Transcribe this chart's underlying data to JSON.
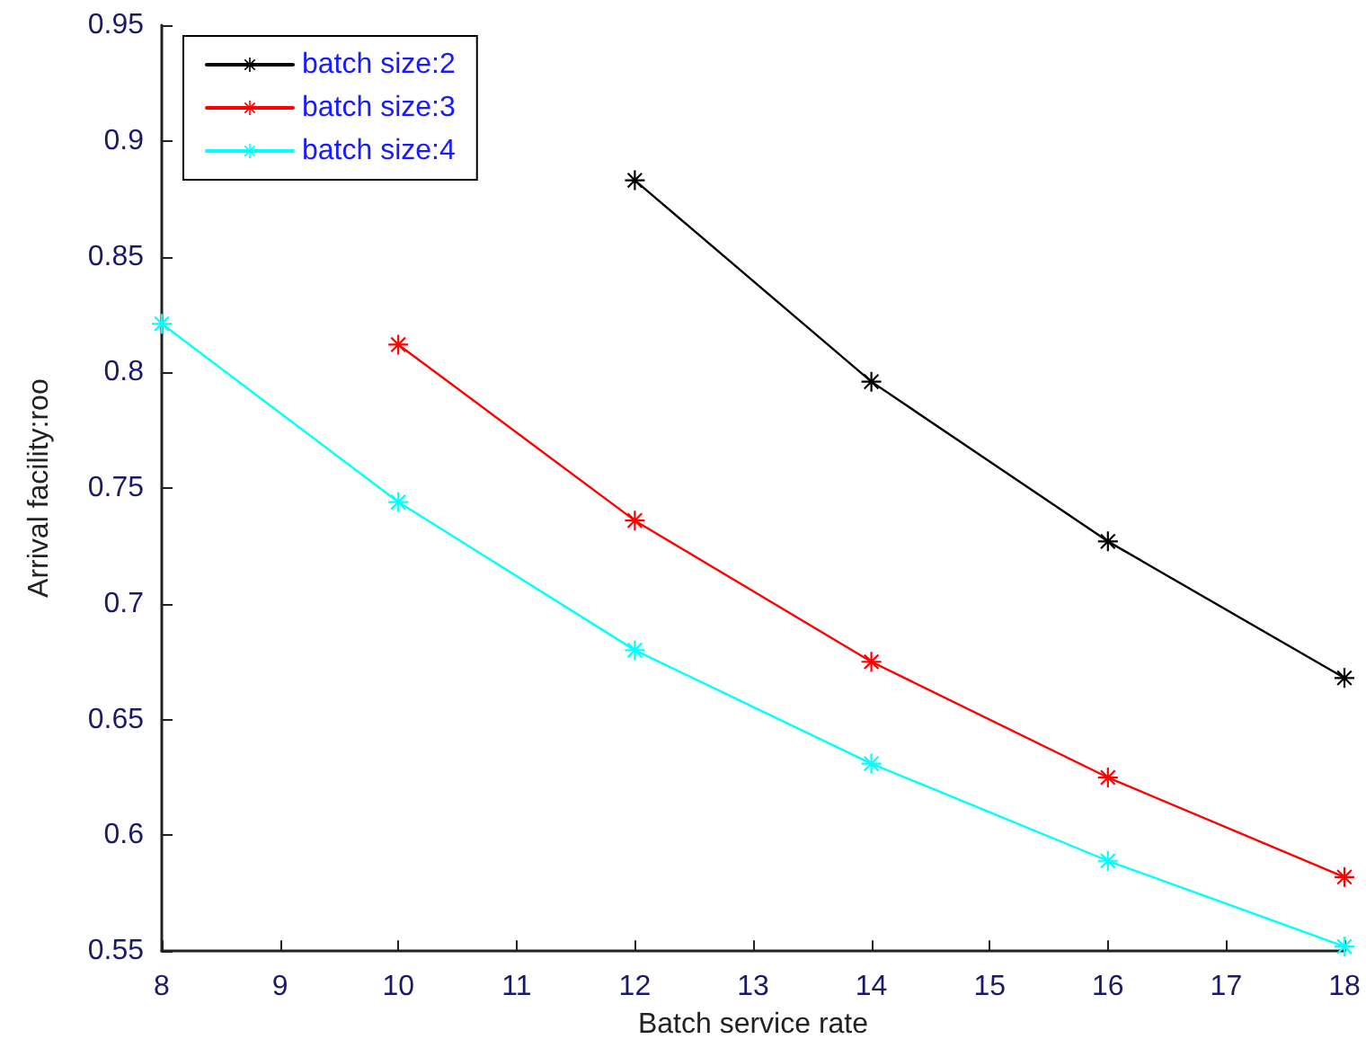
{
  "chart_data": {
    "type": "line",
    "xlabel": "Batch service rate",
    "ylabel": "Arrival facility:roo",
    "xlim": [
      8,
      18
    ],
    "xticks": [
      8,
      9,
      10,
      11,
      12,
      13,
      14,
      15,
      16,
      17,
      18
    ],
    "ylim": [
      0.55,
      0.95
    ],
    "yticks": [
      0.55,
      0.6,
      0.65,
      0.7,
      0.75,
      0.8,
      0.85,
      0.9,
      0.95
    ],
    "grid": false,
    "legend": "top left",
    "marker": "star",
    "line_style": "solid",
    "series": [
      {
        "name": "batch size:2",
        "color": "#000000",
        "x": [
          12,
          14,
          16,
          18
        ],
        "values": [
          0.883,
          0.796,
          0.727,
          0.668
        ]
      },
      {
        "name": "batch size:3",
        "color": "#ff0000",
        "x": [
          10,
          12,
          14,
          16,
          18
        ],
        "values": [
          0.812,
          0.736,
          0.675,
          0.625,
          0.582
        ]
      },
      {
        "name": "batch size:4",
        "color": "#00ffff",
        "x": [
          8,
          10,
          12,
          14,
          16,
          18
        ],
        "values": [
          0.821,
          0.744,
          0.68,
          0.631,
          0.589,
          0.552
        ]
      }
    ]
  }
}
